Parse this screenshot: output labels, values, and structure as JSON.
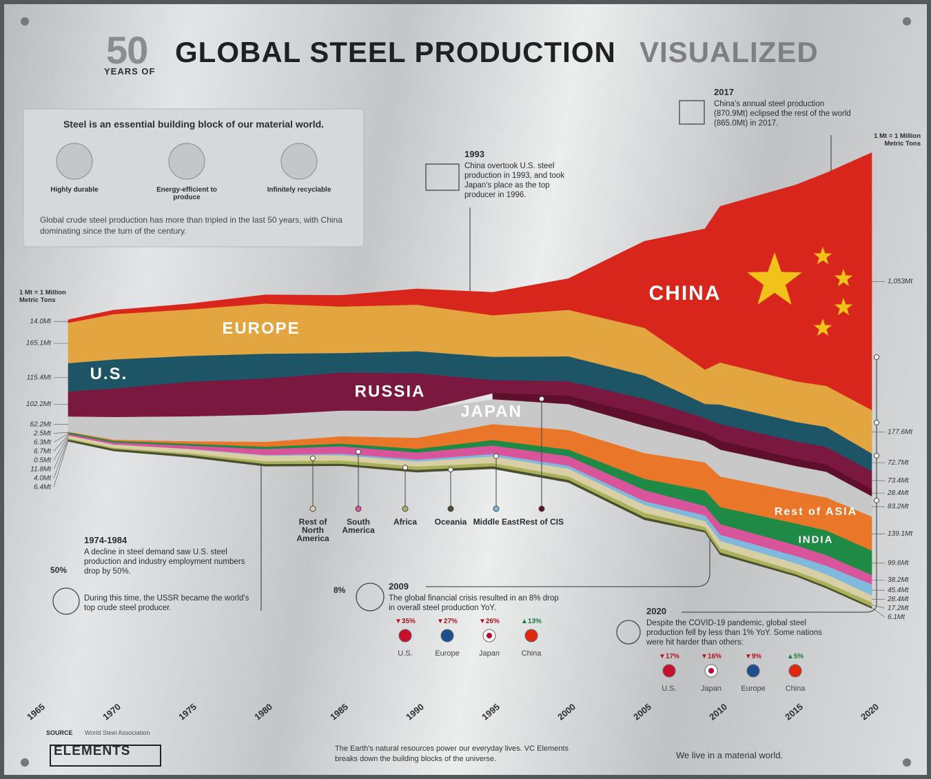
{
  "header": {
    "number": "50",
    "pre": "YEARS OF",
    "title": "GLOBAL STEEL PRODUCTION",
    "title_accent": "VISUALIZED"
  },
  "info_box": {
    "heading": "Steel is an essential building block of our material world.",
    "features": [
      "Highly durable",
      "Energy-efficient to produce",
      "Infinitely recyclable"
    ],
    "text": "Global crude steel production has more than tripled in the last 50 years, with China dominating since the turn of the century."
  },
  "chart_data": {
    "type": "streamgraph",
    "unit_note": "1 Mt = 1 Million Metric Tons",
    "x": [
      1967,
      1970,
      1975,
      1980,
      1985,
      1990,
      1995,
      2000,
      2005,
      2009,
      2010,
      2015,
      2017,
      2020
    ],
    "xlim": [
      1965,
      2020
    ],
    "xticks": [
      1965,
      1970,
      1975,
      1980,
      1985,
      1990,
      1995,
      2000,
      2005,
      2010,
      2015,
      2020
    ],
    "series": [
      {
        "name": "CHINA",
        "color": "#d8261c",
        "values": [
          14,
          18,
          24,
          37,
          47,
          66,
          95,
          129,
          355,
          577,
          639,
          804,
          871,
          1053
        ],
        "value_labels": [
          "14.0Mt",
          null,
          null,
          null,
          null,
          null,
          null,
          null,
          null,
          null,
          null,
          null,
          null,
          "1,053Mt"
        ]
      },
      {
        "name": "EUROPE",
        "color": "#e2a53f",
        "values": [
          165.1,
          185,
          190,
          205,
          190,
          190,
          170,
          190,
          195,
          140,
          172,
          166,
          168,
          177.6
        ],
        "value_labels": [
          "165.1Mt",
          null,
          null,
          null,
          null,
          null,
          null,
          null,
          null,
          null,
          null,
          null,
          null,
          "177.6Mt"
        ]
      },
      {
        "name": "U.S.",
        "color": "#1d5567",
        "values": [
          115.4,
          119,
          106,
          101,
          80,
          90,
          95,
          102,
          95,
          58,
          80,
          79,
          82,
          72.7
        ],
        "value_labels": [
          "115.4Mt",
          null,
          null,
          null,
          null,
          null,
          null,
          null,
          null,
          null,
          null,
          null,
          null,
          "72.7Mt"
        ]
      },
      {
        "name": "RUSSIA",
        "color": "#7a1840",
        "values": [
          102.2,
          116,
          141,
          148,
          155,
          154,
          52,
          59,
          66,
          60,
          67,
          71,
          71,
          73.4
        ],
        "value_labels": [
          "102.2Mt",
          null,
          null,
          null,
          null,
          null,
          null,
          null,
          null,
          null,
          null,
          null,
          null,
          "73.4Mt"
        ]
      },
      {
        "name": "Rest of CIS",
        "color": "#5e0f2c",
        "values": [
          null,
          null,
          null,
          null,
          null,
          null,
          26,
          34,
          44,
          33,
          37,
          30,
          30,
          28.4
        ],
        "value_labels": [
          null,
          null,
          null,
          null,
          null,
          null,
          null,
          null,
          null,
          null,
          null,
          null,
          null,
          "28.4Mt"
        ]
      },
      {
        "name": "JAPAN",
        "color": "#c8c8c8",
        "values": [
          62.2,
          93,
          102,
          111,
          105,
          110,
          102,
          106,
          112,
          88,
          110,
          105,
          105,
          83.2
        ],
        "value_labels": [
          "62.2Mt",
          null,
          null,
          null,
          null,
          null,
          null,
          null,
          null,
          null,
          null,
          null,
          null,
          "83.2Mt"
        ]
      },
      {
        "name": "Rest of ASIA",
        "color": "#ea7629",
        "values": [
          2.5,
          5,
          10,
          20,
          30,
          45,
          65,
          80,
          105,
          115,
          125,
          130,
          135,
          139.1
        ],
        "value_labels": [
          "2.5Mt",
          null,
          null,
          null,
          null,
          null,
          null,
          null,
          null,
          null,
          null,
          null,
          null,
          "139.1Mt"
        ]
      },
      {
        "name": "INDIA",
        "color": "#1f8a45",
        "values": [
          6.3,
          6.3,
          7.9,
          9.5,
          11,
          15,
          22,
          27,
          46,
          63,
          69,
          89,
          101,
          99.6
        ],
        "value_labels": [
          "6.3Mt",
          null,
          null,
          null,
          null,
          null,
          null,
          null,
          null,
          null,
          null,
          null,
          null,
          "99.6Mt"
        ]
      },
      {
        "name": "South America",
        "color": "#d9559b",
        "values": [
          6.7,
          8,
          13,
          24,
          30,
          29,
          35,
          39,
          45,
          38,
          44,
          44,
          43,
          38.2
        ],
        "value_labels": [
          "6.7Mt",
          null,
          null,
          null,
          null,
          null,
          null,
          null,
          null,
          null,
          null,
          null,
          null,
          "38.2Mt"
        ]
      },
      {
        "name": "Middle East",
        "color": "#80b9dc",
        "values": [
          0.5,
          0.5,
          1,
          3,
          6,
          8,
          10,
          12,
          16,
          24,
          25,
          30,
          35,
          45.4
        ],
        "value_labels": [
          "0.5Mt",
          null,
          null,
          null,
          null,
          null,
          null,
          null,
          null,
          null,
          null,
          null,
          null,
          "45.4Mt"
        ]
      },
      {
        "name": "Rest of North America",
        "color": "#d9cfa6",
        "values": [
          11.8,
          13,
          17,
          23,
          22,
          20,
          27,
          32,
          32,
          23,
          30,
          31,
          33,
          28.4
        ],
        "value_labels": [
          "11.8Mt",
          null,
          null,
          null,
          null,
          null,
          null,
          null,
          null,
          null,
          null,
          null,
          null,
          "28.4Mt"
        ]
      },
      {
        "name": "Africa",
        "color": "#a9b25a",
        "values": [
          4.0,
          5,
          7,
          11,
          13,
          14,
          13,
          14,
          18,
          15,
          17,
          14,
          16,
          17.2
        ],
        "value_labels": [
          "4.0Mt",
          null,
          null,
          null,
          null,
          null,
          null,
          null,
          null,
          null,
          null,
          null,
          null,
          "17.2Mt"
        ]
      },
      {
        "name": "Oceania",
        "color": "#4a4f2e",
        "values": [
          6.4,
          7,
          8,
          8,
          7,
          8,
          9,
          9,
          9,
          6,
          8,
          6,
          6,
          6.1
        ],
        "value_labels": [
          "6.4Mt",
          null,
          null,
          null,
          null,
          null,
          null,
          null,
          null,
          null,
          null,
          null,
          null,
          "6.1Mt"
        ]
      }
    ],
    "annotations": [
      {
        "title": "2017",
        "text": "China's annual steel production (870.9Mt) eclipsed the rest of the world (865.0Mt) in 2017."
      },
      {
        "title": "1993",
        "text": "China overtook U.S. steel production in 1993, and took Japan's place as the top producer in 1996."
      },
      {
        "title": "1974-1984",
        "badge": "50%",
        "text": "A decline in steel demand saw U.S. steel production and industry employment numbers drop by 50%.",
        "note": "During this time, the USSR became the world's top crude steel producer."
      },
      {
        "title": "2009",
        "badge": "8%",
        "text": "The global financial crisis resulted in an 8% drop in overall steel production YoY.",
        "stats": [
          {
            "change": "▼35%",
            "label": "U.S."
          },
          {
            "change": "▼27%",
            "label": "Europe"
          },
          {
            "change": "▼26%",
            "label": "Japan"
          },
          {
            "change": "▲13%",
            "label": "China"
          }
        ]
      },
      {
        "title": "2020",
        "text": "Despite the COVID-19 pandemic, global steel production fell by less than 1% YoY. Some nations were hit harder than others:",
        "stats": [
          {
            "change": "▼17%",
            "label": "U.S."
          },
          {
            "change": "▼16%",
            "label": "Japan"
          },
          {
            "change": "▼9%",
            "label": "Europe"
          },
          {
            "change": "▲5%",
            "label": "China"
          }
        ]
      }
    ]
  },
  "footer": {
    "source_label": "SOURCE",
    "source": "World Steel Association",
    "brand": "ELEMENTS",
    "tagline": "The Earth's natural resources power our everyday lives. VC Elements breaks down the building blocks of the universe.",
    "slogan": "We live in a material world."
  }
}
